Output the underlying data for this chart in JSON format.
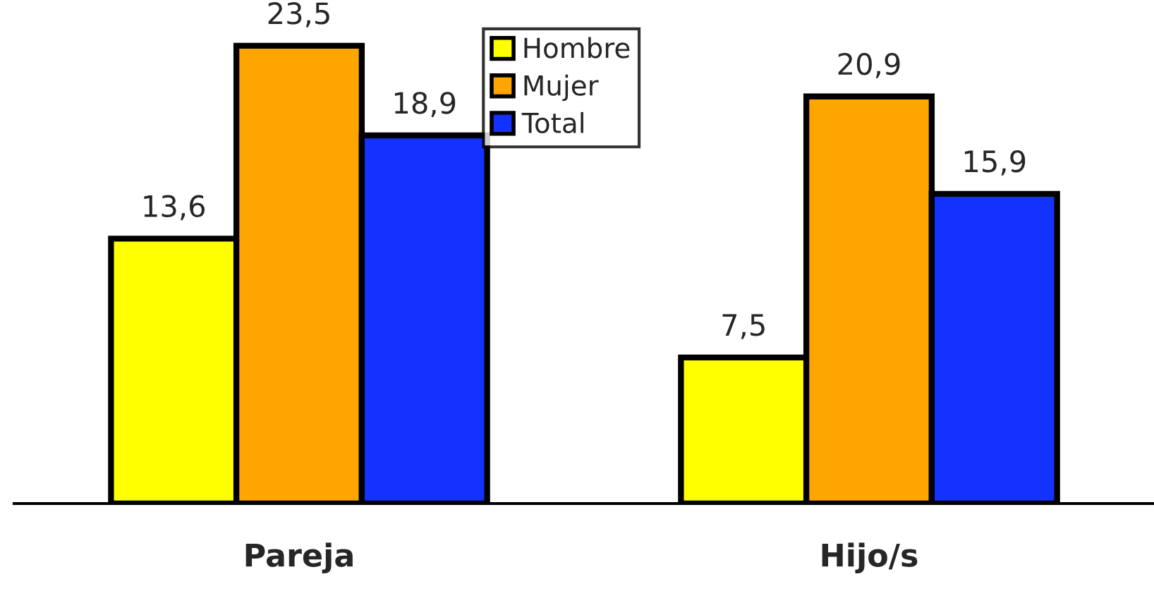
{
  "chart_data": {
    "type": "bar",
    "categories": [
      "Pareja",
      "Hijo/s"
    ],
    "series": [
      {
        "name": "Hombre",
        "color": "#ffff00",
        "values": [
          13.6,
          7.5
        ],
        "value_labels": [
          "13,6",
          "7,5"
        ]
      },
      {
        "name": "Mujer",
        "color": "#ffa500",
        "values": [
          23.5,
          20.9
        ],
        "value_labels": [
          "23,5",
          "20,9"
        ]
      },
      {
        "name": "Total",
        "color": "#1432ff",
        "values": [
          18.9,
          15.9
        ],
        "value_labels": [
          "18,9",
          "15,9"
        ]
      }
    ],
    "legend": "top",
    "grid": false
  }
}
